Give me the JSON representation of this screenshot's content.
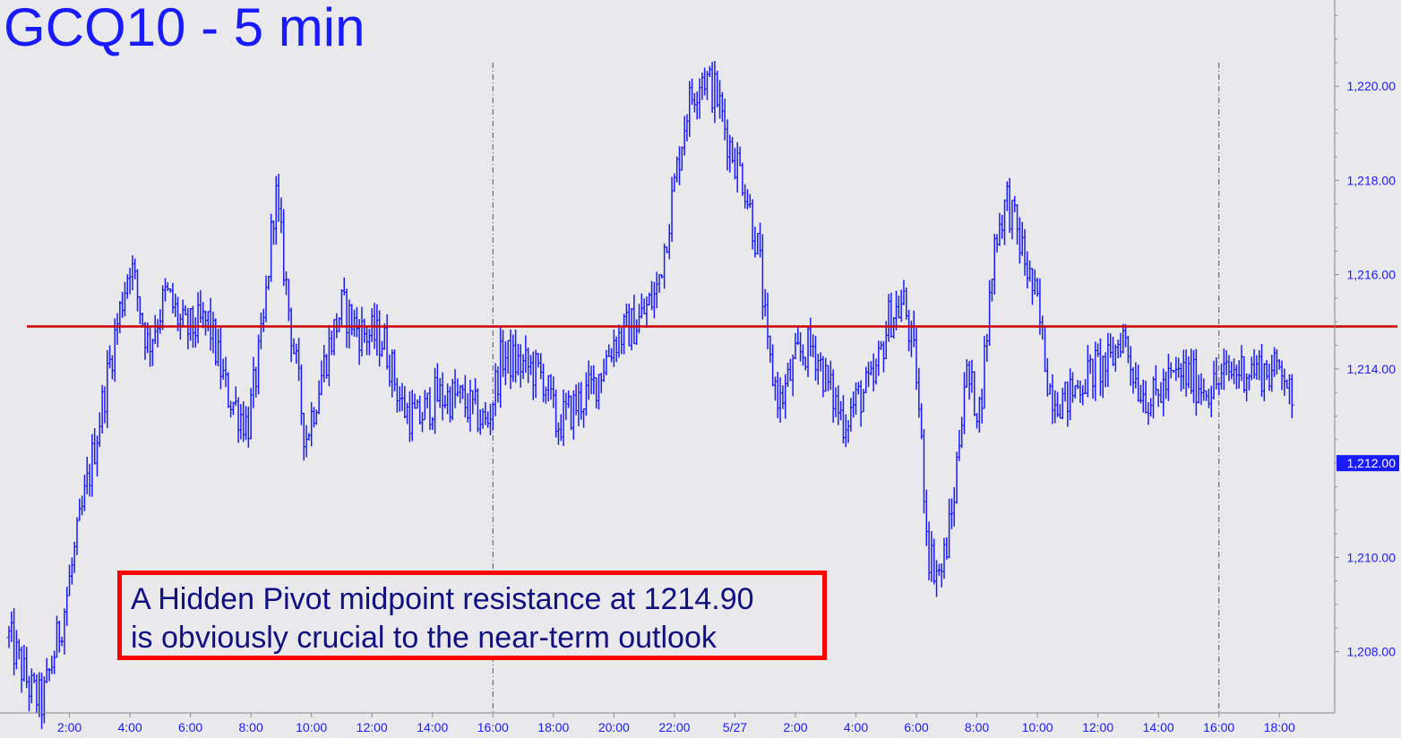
{
  "chart_data": {
    "type": "ohlc-bar",
    "title": "GCQ10 - 5 min",
    "y_ticks": [
      "1,208.00",
      "1,210.00",
      "1,212.00",
      "1,214.00",
      "1,216.00",
      "1,218.00",
      "1,220.00"
    ],
    "y_tick_values": [
      1208,
      1210,
      1212,
      1214,
      1216,
      1218,
      1220
    ],
    "ylim": [
      1206.7,
      1221.6
    ],
    "x_ticks": [
      "2:00",
      "4:00",
      "6:00",
      "8:00",
      "10:00",
      "12:00",
      "14:00",
      "16:00",
      "18:00",
      "20:00",
      "22:00",
      "5/27",
      "2:00",
      "4:00",
      "6:00",
      "8:00",
      "10:00",
      "12:00",
      "14:00",
      "16:00",
      "18:00"
    ],
    "x_tick_hours": [
      2,
      4,
      6,
      8,
      10,
      12,
      14,
      16,
      18,
      20,
      22,
      24,
      26,
      28,
      30,
      32,
      34,
      36,
      38,
      40,
      42
    ],
    "xlim": [
      0.0,
      43.0
    ],
    "session_breaks": [
      16,
      40
    ],
    "resistance_line": {
      "value": 1214.9,
      "color": "#cc0000"
    },
    "last_price": {
      "label": "1,212.00",
      "value": 1212.0
    },
    "series_color": "#1a1aff",
    "path": [
      [
        0.0,
        1208.3
      ],
      [
        0.7,
        1207.2
      ],
      [
        1.1,
        1206.9
      ],
      [
        1.8,
        1208.8
      ],
      [
        2.4,
        1210.9
      ],
      [
        2.9,
        1212.6
      ],
      [
        3.5,
        1214.7
      ],
      [
        4.0,
        1216.3
      ],
      [
        4.6,
        1214.5
      ],
      [
        5.2,
        1215.6
      ],
      [
        5.8,
        1214.8
      ],
      [
        6.6,
        1215.0
      ],
      [
        7.2,
        1213.5
      ],
      [
        7.9,
        1212.8
      ],
      [
        8.4,
        1214.8
      ],
      [
        8.8,
        1217.8
      ],
      [
        9.3,
        1215.0
      ],
      [
        9.8,
        1212.5
      ],
      [
        10.5,
        1214.3
      ],
      [
        11.0,
        1215.3
      ],
      [
        11.6,
        1214.8
      ],
      [
        12.4,
        1214.6
      ],
      [
        13.0,
        1213.2
      ],
      [
        13.5,
        1212.9
      ],
      [
        14.1,
        1213.4
      ],
      [
        14.8,
        1213.4
      ],
      [
        15.4,
        1213.1
      ],
      [
        15.8,
        1212.8
      ],
      [
        16.3,
        1214.3
      ],
      [
        16.8,
        1214.1
      ],
      [
        17.3,
        1214.0
      ],
      [
        17.7,
        1213.8
      ],
      [
        18.1,
        1212.8
      ],
      [
        18.7,
        1213.2
      ],
      [
        19.3,
        1213.6
      ],
      [
        20.0,
        1214.6
      ],
      [
        20.8,
        1215.0
      ],
      [
        21.4,
        1215.6
      ],
      [
        21.9,
        1217.5
      ],
      [
        22.4,
        1219.5
      ],
      [
        22.9,
        1220.3
      ],
      [
        23.4,
        1219.8
      ],
      [
        23.8,
        1218.8
      ],
      [
        24.3,
        1218.0
      ],
      [
        24.8,
        1216.4
      ],
      [
        25.1,
        1214.2
      ],
      [
        25.5,
        1213.3
      ],
      [
        26.1,
        1214.3
      ],
      [
        26.6,
        1214.5
      ],
      [
        27.1,
        1213.6
      ],
      [
        27.6,
        1212.9
      ],
      [
        28.1,
        1213.4
      ],
      [
        28.6,
        1213.7
      ],
      [
        29.1,
        1215.1
      ],
      [
        29.6,
        1215.4
      ],
      [
        30.0,
        1213.9
      ],
      [
        30.4,
        1210.1
      ],
      [
        30.8,
        1209.6
      ],
      [
        31.2,
        1211.0
      ],
      [
        31.6,
        1213.9
      ],
      [
        32.1,
        1213.1
      ],
      [
        32.6,
        1216.8
      ],
      [
        33.0,
        1217.6
      ],
      [
        33.5,
        1216.5
      ],
      [
        34.0,
        1215.3
      ],
      [
        34.4,
        1213.6
      ],
      [
        34.9,
        1213.3
      ],
      [
        35.4,
        1213.7
      ],
      [
        35.9,
        1214.0
      ],
      [
        36.4,
        1214.1
      ],
      [
        36.8,
        1214.8
      ],
      [
        37.3,
        1213.7
      ],
      [
        37.8,
        1213.3
      ],
      [
        38.3,
        1213.7
      ],
      [
        38.8,
        1213.9
      ],
      [
        39.3,
        1213.7
      ],
      [
        39.8,
        1213.6
      ],
      [
        40.3,
        1213.9
      ],
      [
        40.8,
        1214.0
      ],
      [
        41.3,
        1214.0
      ],
      [
        41.8,
        1213.9
      ],
      [
        42.1,
        1214.2
      ],
      [
        42.3,
        1213.6
      ],
      [
        42.5,
        1212.4
      ]
    ]
  },
  "annotation": {
    "line1": "A Hidden Pivot midpoint resistance at 1214.90",
    "line2": "is obviously crucial to the near-term outlook"
  }
}
